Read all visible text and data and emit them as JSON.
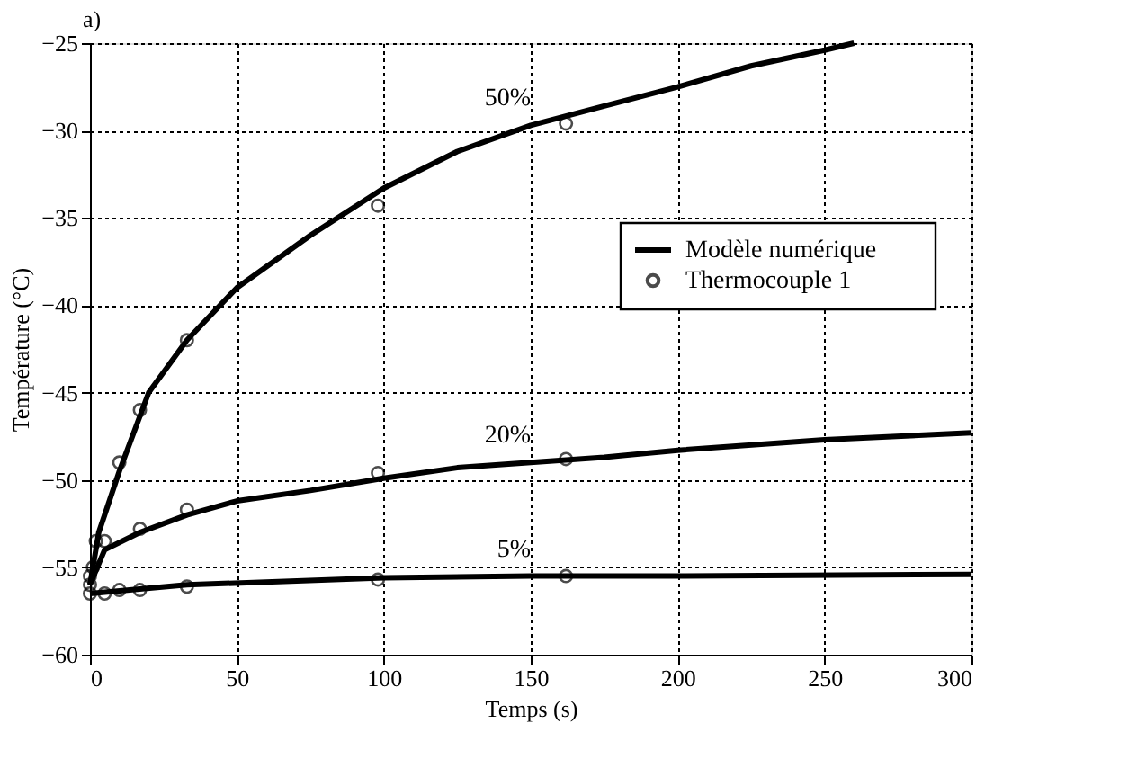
{
  "chart_data": {
    "type": "line",
    "xlabel": "Temps (s)",
    "ylabel": "Température (°C)",
    "xlim": [
      0,
      300
    ],
    "xticks": [
      0,
      50,
      100,
      150,
      200,
      250,
      300
    ],
    "ylim": [
      -60,
      -25
    ],
    "yticks": [
      -60,
      -55,
      -50,
      -45,
      -40,
      -35,
      -30,
      -25
    ],
    "grid": true,
    "legend": "right",
    "line_style": "solid",
    "annotations": [
      "a)",
      "50%",
      "20%",
      "5%"
    ],
    "series": [
      {
        "name": "Modèle numérique",
        "color": "#000000",
        "x": [
          0,
          3,
          10,
          20,
          33,
          50,
          75,
          100,
          125,
          150,
          175,
          200,
          225,
          250,
          260
        ],
        "values": [
          -56,
          -53,
          -49.5,
          -45,
          -42,
          -39,
          -36,
          -33.3,
          -31.2,
          -29.7,
          -28.6,
          -27.5,
          -26.3,
          -25.4,
          -25
        ]
      },
      {
        "color": "#000000",
        "x": [
          0,
          5,
          17,
          33,
          50,
          75,
          100,
          125,
          150,
          175,
          200,
          250,
          300
        ],
        "values": [
          -56,
          -54,
          -53,
          -52,
          -51.2,
          -50.6,
          -49.9,
          -49.3,
          -49,
          -48.7,
          -48.3,
          -47.7,
          -47.3
        ]
      },
      {
        "color": "#000000",
        "x": [
          0,
          33,
          100,
          150,
          200,
          300
        ],
        "values": [
          -56.5,
          -56,
          -55.6,
          -55.5,
          -55.5,
          -55.4
        ]
      },
      {
        "name": "Thermocouple 1",
        "type": "scatter",
        "marker": "circle",
        "color": "#000000",
        "x": [
          0,
          1,
          2,
          10,
          17,
          33,
          98,
          162
        ],
        "values": [
          -56,
          -55,
          -53.5,
          -49,
          -46,
          -42,
          -34.3,
          -29.6
        ]
      },
      {
        "type": "scatter",
        "marker": "circle",
        "color": "#000000",
        "x": [
          0,
          5,
          17,
          33,
          98,
          162
        ],
        "values": [
          -55.5,
          -53.5,
          -52.8,
          -51.7,
          -49.6,
          -48.8
        ]
      },
      {
        "type": "scatter",
        "marker": "circle",
        "color": "#000000",
        "x": [
          0,
          5,
          10,
          17,
          33,
          98,
          162
        ],
        "values": [
          -56.5,
          -56.5,
          -56.3,
          -56.3,
          -56.1,
          -55.7,
          -55.5
        ]
      }
    ]
  }
}
